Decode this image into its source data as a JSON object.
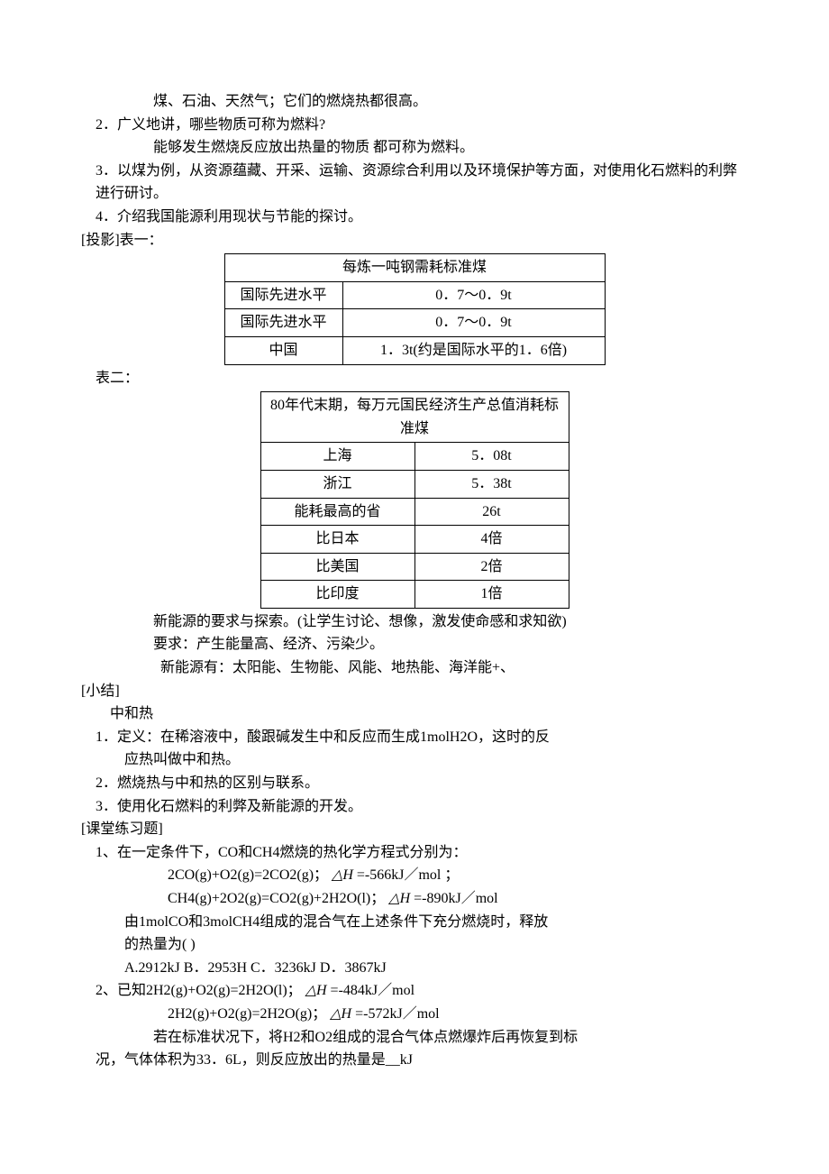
{
  "intro": {
    "line1": "煤、石油、天然气；它们的燃烧热都很高。",
    "q2": "2．广义地讲，哪些物质可称为燃料?",
    "a2": "能够发生燃烧反应放出热量的物质 都可称为燃料。",
    "q3": "3．以煤为例，从资源蕴藏、开采、运输、资源综合利用以及环境保护等方面，对使用化石燃料的利弊进行研讨。",
    "q4": "4．介绍我国能源利用现状与节能的探讨。"
  },
  "label_table1": "[投影]表一：",
  "table1": {
    "header": "每炼一吨钢需耗标准煤",
    "rows": [
      {
        "c1": "国际先进水平",
        "c2": "0．7～0．9t"
      },
      {
        "c1": "国际先进水平",
        "c2": "0．7～0．9t"
      },
      {
        "c1": "中国",
        "c2": "1．3t(约是国际水平的1．6倍)"
      }
    ]
  },
  "label_table2": "表二：",
  "table2": {
    "header": "80年代末期，每万元国民经济生产总值消耗标准煤",
    "rows": [
      {
        "c1": "上海",
        "c2": "5．08t"
      },
      {
        "c1": "浙江",
        "c2": "5．38t"
      },
      {
        "c1": "能耗最高的省",
        "c2": "26t"
      },
      {
        "c1": "比日本",
        "c2": "4倍"
      },
      {
        "c1": "比美国",
        "c2": "2倍"
      },
      {
        "c1": "比印度",
        "c2": "1倍"
      }
    ]
  },
  "new_energy": {
    "line1": "新能源的要求与探索。(让学生讨论、想像，激发使命感和求知欲)",
    "line2": "要求：产生能量高、经济、污染少。",
    "line3": "新能源有：太阳能、生物能、风能、地热能、海洋能+、"
  },
  "summary_label": "[小结]",
  "summary": {
    "title": "中和热",
    "item1a": "1．定义：在稀溶液中，酸跟碱发生中和反应而生成1molH2O，这时的反",
    "item1b": "应热叫做中和热。",
    "item2": "2．燃烧热与中和热的区别与联系。",
    "item3": "3．使用化石燃料的利弊及新能源的开发。"
  },
  "exercise_label": "[课堂练习题]",
  "ex1": {
    "stem": "1、在一定条件下，CO和CH4燃烧的热化学方程式分别为：",
    "eq1_left": "2CO(g)+O2(g)=2CO2(g)；",
    "eq1_dh": "△H",
    "eq1_right": "=-566kJ／mol ；",
    "eq2_left": "CH4(g)+2O2(g)=CO2(g)+2H2O(l)；",
    "eq2_dh": "△H",
    "eq2_right": "=-890kJ／mol",
    "body1": "由1molCO和3molCH4组成的混合气在上述条件下充分燃烧时，释放",
    "body2": "的热量为( )",
    "options": "A.2912kJ B．2953H C．3236kJ D．3867kJ"
  },
  "ex2": {
    "stem_left": "2、已知2H2(g)+O2(g)=2H2O(l)；",
    "stem_dh": "△H",
    "stem_right": "=-484kJ／mol",
    "eq2_left": "2H2(g)+O2(g)=2H2O(g)；",
    "eq2_dh": "△H",
    "eq2_right": "=-572kJ／mol",
    "body1": "若在标准状况下，将H2和O2组成的混合气体点燃爆炸后再恢复到标",
    "body2": "况，气体体积为33．6L，则反应放出的热量是__kJ"
  },
  "colors": {
    "text": "#000000",
    "background": "#ffffff",
    "border": "#000000"
  },
  "fonts": {
    "body_family": "SimSun",
    "body_size_pt": 12,
    "math_family": "Times New Roman"
  }
}
